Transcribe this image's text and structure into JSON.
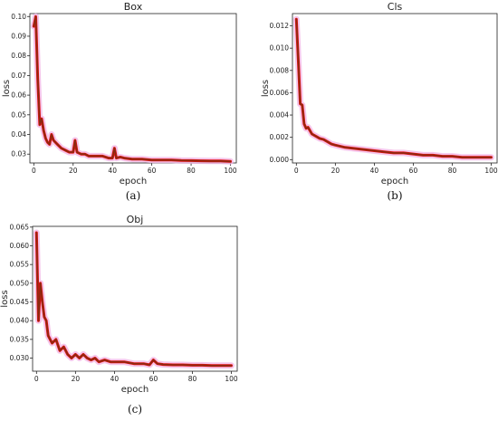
{
  "chart_data": [
    {
      "type": "line",
      "title": "Box",
      "caption": "(a)",
      "xlabel": "epoch",
      "ylabel": "loss",
      "xlim": [
        -2,
        103
      ],
      "ylim": [
        0.0255,
        0.1015
      ],
      "xticks": [
        0,
        20,
        40,
        60,
        80,
        100
      ],
      "yticks": [
        0.03,
        0.04,
        0.05,
        0.06,
        0.07,
        0.08,
        0.09,
        0.1
      ],
      "ytick_labels": [
        "0.03",
        "0.04",
        "0.05",
        "0.06",
        "0.07",
        "0.08",
        "0.09",
        "0.10"
      ],
      "series": [
        {
          "x": [
            0,
            1,
            2,
            3,
            4,
            5,
            6,
            7,
            8,
            9,
            10,
            12,
            14,
            16,
            18,
            20,
            21,
            22,
            24,
            26,
            28,
            30,
            32,
            35,
            38,
            40,
            41,
            42,
            44,
            46,
            50,
            55,
            60,
            65,
            70,
            75,
            80,
            85,
            90,
            95,
            100
          ],
          "y": [
            0.095,
            0.1,
            0.068,
            0.045,
            0.048,
            0.042,
            0.038,
            0.036,
            0.035,
            0.04,
            0.037,
            0.035,
            0.033,
            0.032,
            0.031,
            0.031,
            0.037,
            0.031,
            0.03,
            0.03,
            0.029,
            0.029,
            0.029,
            0.029,
            0.028,
            0.028,
            0.033,
            0.028,
            0.0285,
            0.028,
            0.0275,
            0.0275,
            0.027,
            0.027,
            0.027,
            0.0268,
            0.0267,
            0.0266,
            0.0265,
            0.0265,
            0.0263
          ]
        }
      ]
    },
    {
      "type": "line",
      "title": "Cls",
      "caption": "(b)",
      "xlabel": "epoch",
      "ylabel": "loss",
      "xlim": [
        -2,
        103
      ],
      "ylim": [
        -0.0003,
        0.0131
      ],
      "xticks": [
        0,
        20,
        40,
        60,
        80,
        100
      ],
      "yticks": [
        0.0,
        0.002,
        0.004,
        0.006,
        0.008,
        0.01,
        0.012
      ],
      "ytick_labels": [
        "0.000",
        "0.002",
        "0.004",
        "0.006",
        "0.008",
        "0.010",
        "0.012"
      ],
      "series": [
        {
          "x": [
            0,
            1,
            2,
            3,
            4,
            5,
            6,
            8,
            10,
            12,
            14,
            16,
            18,
            20,
            25,
            30,
            35,
            40,
            45,
            50,
            55,
            60,
            65,
            70,
            75,
            80,
            85,
            90,
            95,
            100
          ],
          "y": [
            0.0126,
            0.0088,
            0.005,
            0.0049,
            0.0032,
            0.0028,
            0.0029,
            0.0023,
            0.0021,
            0.0019,
            0.0018,
            0.0016,
            0.0014,
            0.0013,
            0.0011,
            0.001,
            0.0009,
            0.0008,
            0.0007,
            0.0006,
            0.0006,
            0.0005,
            0.0004,
            0.0004,
            0.0003,
            0.0003,
            0.0002,
            0.0002,
            0.0002,
            0.0002
          ]
        }
      ]
    },
    {
      "type": "line",
      "title": "Obj",
      "caption": "(c)",
      "xlabel": "epoch",
      "ylabel": "loss",
      "xlim": [
        -2,
        103
      ],
      "ylim": [
        0.0265,
        0.0652
      ],
      "xticks": [
        0,
        20,
        40,
        60,
        80,
        100
      ],
      "yticks": [
        0.03,
        0.035,
        0.04,
        0.045,
        0.05,
        0.055,
        0.06,
        0.065
      ],
      "ytick_labels": [
        "0.030",
        "0.035",
        "0.040",
        "0.045",
        "0.050",
        "0.055",
        "0.060",
        "0.065"
      ],
      "series": [
        {
          "x": [
            0,
            1,
            2,
            3,
            4,
            5,
            6,
            7,
            8,
            10,
            12,
            14,
            16,
            18,
            20,
            22,
            24,
            26,
            28,
            30,
            32,
            35,
            38,
            40,
            45,
            50,
            55,
            58,
            60,
            62,
            65,
            70,
            75,
            80,
            85,
            90,
            95,
            100
          ],
          "y": [
            0.0635,
            0.04,
            0.05,
            0.045,
            0.041,
            0.04,
            0.036,
            0.035,
            0.034,
            0.035,
            0.032,
            0.033,
            0.031,
            0.03,
            0.031,
            0.03,
            0.031,
            0.03,
            0.0295,
            0.03,
            0.029,
            0.0295,
            0.029,
            0.029,
            0.029,
            0.0285,
            0.0285,
            0.0282,
            0.0295,
            0.0285,
            0.0283,
            0.0282,
            0.0282,
            0.0281,
            0.0281,
            0.028,
            0.028,
            0.028
          ]
        }
      ]
    }
  ]
}
